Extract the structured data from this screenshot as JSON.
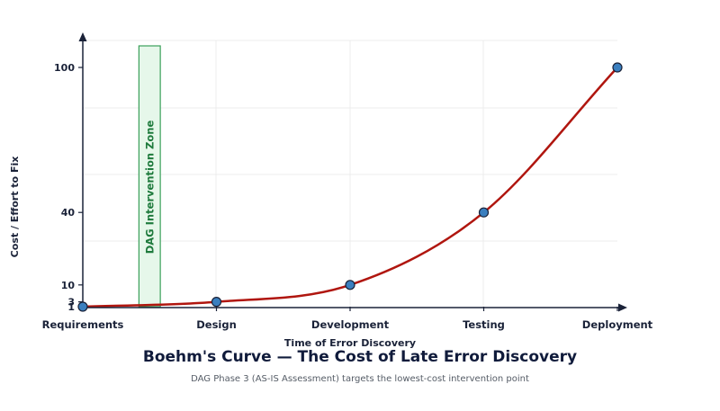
{
  "chart_data": {
    "type": "line",
    "title": "Boehm's Curve — The Cost of Late Error Discovery",
    "subtitle": "DAG Phase 3 (AS-IS Assessment) targets the lowest-cost intervention point",
    "xlabel": "Time of Error Discovery",
    "ylabel": "Cost / Effort to Fix",
    "categories": [
      "Requirements",
      "Design",
      "Development",
      "Testing",
      "Deployment"
    ],
    "values": [
      1,
      3,
      10,
      40,
      100
    ],
    "y_ticks": [
      1,
      3,
      10,
      40,
      100
    ],
    "ylim": [
      1,
      100
    ],
    "grid": true,
    "zone": {
      "label": "DAG Intervention Zone",
      "from": 0.42,
      "to": 0.58
    },
    "colors": {
      "curve": "#b0160f",
      "marker": "#3a7fbf",
      "marker_edge": "#1a2238",
      "axis": "#1a2238",
      "zone_fill": "#e6f7ea",
      "zone_edge": "#3aa05a"
    }
  }
}
